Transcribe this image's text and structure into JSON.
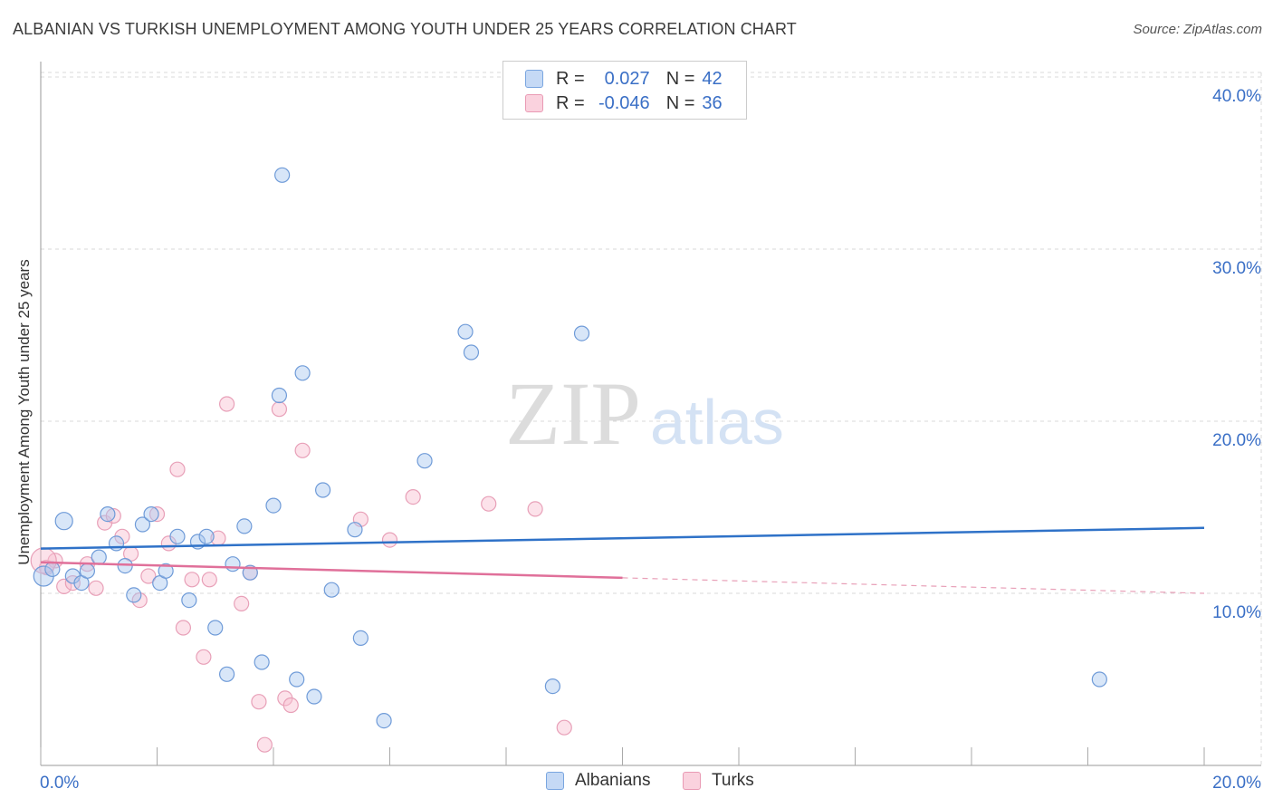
{
  "title": "ALBANIAN VS TURKISH UNEMPLOYMENT AMONG YOUTH UNDER 25 YEARS CORRELATION CHART",
  "source": "Source: ZipAtlas.com",
  "watermark": {
    "zip": "ZIP",
    "atlas": "atlas"
  },
  "legend": {
    "r_label": "R =",
    "n_label": "N =",
    "rows": [
      {
        "r": "0.027",
        "n": "42",
        "fill": "#c5d9f5",
        "stroke": "#7aa6e0"
      },
      {
        "r": "-0.046",
        "n": "36",
        "fill": "#fad2de",
        "stroke": "#e99ab4"
      }
    ]
  },
  "bottom_legend": [
    "Albanians",
    "Turks"
  ],
  "colors": {
    "albanian_fill": "rgba(168,199,240,0.45)",
    "albanian_stroke": "#6f9bd8",
    "albanian_line": "#2f72c8",
    "turk_fill": "rgba(248,190,208,0.45)",
    "turk_stroke": "#e8a0b8",
    "turk_line": "#e0709a",
    "axis_label": "#3a6fc6",
    "grid": "#d8d8d8"
  },
  "chart_data": {
    "type": "scatter",
    "title": "ALBANIAN VS TURKISH UNEMPLOYMENT AMONG YOUTH UNDER 25 YEARS CORRELATION CHART",
    "xlabel": "",
    "ylabel": "Unemployment Among Youth under 25 years",
    "xlim": [
      0,
      20
    ],
    "ylim": [
      0,
      40
    ],
    "x_tick_labels": [
      "0.0%",
      "20.0%"
    ],
    "y_ticks": [
      10,
      20,
      30,
      40
    ],
    "y_tick_labels": [
      "10.0%",
      "20.0%",
      "30.0%",
      "40.0%"
    ],
    "grid": true,
    "series": [
      {
        "name": "Albanians",
        "points": [
          [
            0.05,
            11.0
          ],
          [
            0.2,
            11.4
          ],
          [
            0.4,
            14.2
          ],
          [
            0.55,
            11.0
          ],
          [
            0.7,
            10.6
          ],
          [
            0.8,
            11.3
          ],
          [
            1.0,
            12.1
          ],
          [
            1.15,
            14.6
          ],
          [
            1.3,
            12.9
          ],
          [
            1.45,
            11.6
          ],
          [
            1.6,
            9.9
          ],
          [
            1.75,
            14.0
          ],
          [
            1.9,
            14.6
          ],
          [
            2.05,
            10.6
          ],
          [
            2.15,
            11.3
          ],
          [
            2.35,
            13.3
          ],
          [
            2.55,
            9.6
          ],
          [
            2.7,
            13.0
          ],
          [
            2.85,
            13.3
          ],
          [
            3.0,
            8.0
          ],
          [
            3.2,
            5.3
          ],
          [
            3.3,
            11.7
          ],
          [
            3.5,
            13.9
          ],
          [
            3.6,
            11.2
          ],
          [
            3.8,
            6.0
          ],
          [
            4.0,
            15.1
          ],
          [
            4.1,
            21.5
          ],
          [
            4.15,
            34.3
          ],
          [
            4.4,
            5.0
          ],
          [
            4.5,
            22.8
          ],
          [
            4.7,
            4.0
          ],
          [
            4.85,
            16.0
          ],
          [
            5.0,
            10.2
          ],
          [
            5.4,
            13.7
          ],
          [
            5.5,
            7.4
          ],
          [
            5.9,
            2.6
          ],
          [
            6.6,
            17.7
          ],
          [
            7.3,
            25.2
          ],
          [
            7.4,
            24.0
          ],
          [
            8.8,
            4.6
          ],
          [
            9.3,
            25.1
          ],
          [
            18.2,
            5.0
          ]
        ],
        "trend": {
          "x": [
            0,
            20
          ],
          "y": [
            12.6,
            13.8
          ]
        }
      },
      {
        "name": "Turks",
        "points": [
          [
            0.1,
            11.5
          ],
          [
            0.25,
            11.9
          ],
          [
            0.4,
            10.4
          ],
          [
            0.55,
            10.6
          ],
          [
            0.8,
            11.7
          ],
          [
            0.95,
            10.3
          ],
          [
            1.1,
            14.1
          ],
          [
            1.25,
            14.5
          ],
          [
            1.4,
            13.3
          ],
          [
            1.55,
            12.3
          ],
          [
            1.7,
            9.6
          ],
          [
            1.85,
            11.0
          ],
          [
            2.0,
            14.6
          ],
          [
            2.2,
            12.9
          ],
          [
            2.35,
            17.2
          ],
          [
            2.45,
            8.0
          ],
          [
            2.6,
            10.8
          ],
          [
            2.8,
            6.3
          ],
          [
            2.9,
            10.8
          ],
          [
            3.05,
            13.2
          ],
          [
            3.2,
            21.0
          ],
          [
            3.45,
            9.4
          ],
          [
            3.6,
            11.2
          ],
          [
            3.75,
            3.7
          ],
          [
            3.85,
            1.2
          ],
          [
            4.1,
            20.7
          ],
          [
            4.2,
            3.9
          ],
          [
            4.3,
            3.5
          ],
          [
            4.5,
            18.3
          ],
          [
            5.5,
            14.3
          ],
          [
            6.0,
            13.1
          ],
          [
            6.4,
            15.6
          ],
          [
            7.7,
            15.2
          ],
          [
            8.5,
            14.9
          ],
          [
            9.0,
            2.2
          ],
          [
            0.05,
            11.9
          ]
        ],
        "trend": {
          "x": [
            0,
            10
          ],
          "y": [
            11.8,
            10.9
          ]
        },
        "trend_dashed": {
          "x": [
            10,
            20
          ],
          "y": [
            10.9,
            10.0
          ]
        }
      }
    ]
  }
}
